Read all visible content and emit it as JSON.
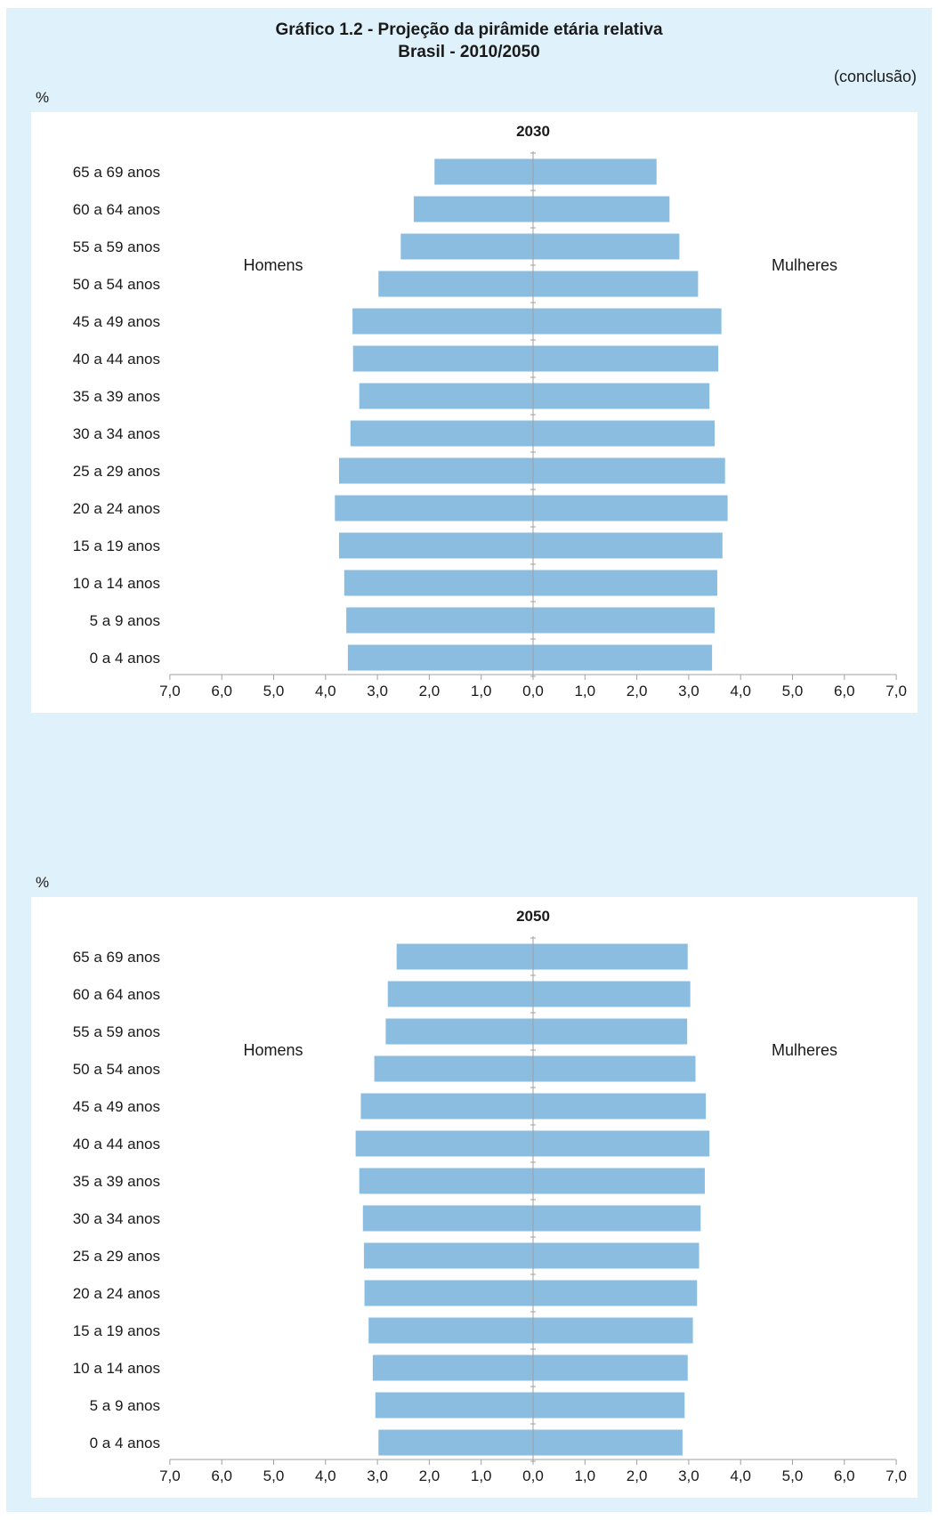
{
  "title_line1": "Gráfico 1.2 - Projeção da pirâmide etária relativa",
  "title_line2": "Brasil - 2010/2050",
  "note": "(conclusão)",
  "colors": {
    "bar": "#8bbde0",
    "background": "#dff1fa",
    "panel": "#ffffff",
    "axis": "#a0a0a0"
  },
  "chart_data": [
    {
      "type": "bar",
      "title": "2030",
      "unit": "%",
      "left_label": "Homens",
      "right_label": "Mulheres",
      "categories": [
        "65 a 69 anos",
        "60 a 64 anos",
        "55 a 59 anos",
        "50 a 54 anos",
        "45 a 49 anos",
        "40 a 44 anos",
        "35 a 39 anos",
        "30 a 34 anos",
        "25 a 29 anos",
        "20 a 24 anos",
        "15 a 19 anos",
        "10 a 14 anos",
        "5 a 9 anos",
        "0 a 4 anos"
      ],
      "series": [
        {
          "name": "Homens",
          "values": [
            1.9,
            2.3,
            2.55,
            2.98,
            3.48,
            3.47,
            3.35,
            3.52,
            3.74,
            3.82,
            3.74,
            3.64,
            3.6,
            3.57
          ]
        },
        {
          "name": "Mulheres",
          "values": [
            2.38,
            2.63,
            2.82,
            3.18,
            3.63,
            3.57,
            3.4,
            3.5,
            3.7,
            3.75,
            3.65,
            3.55,
            3.5,
            3.45
          ]
        }
      ],
      "xticks": [
        "7,0",
        "6,0",
        "5,0",
        "4,0",
        "3,0",
        "2,0",
        "1,0",
        "0,0",
        "1,0",
        "2,0",
        "3,0",
        "4,0",
        "5,0",
        "6,0",
        "7,0"
      ],
      "xlim": [
        -7,
        7
      ],
      "grid": false
    },
    {
      "type": "bar",
      "title": "2050",
      "unit": "%",
      "left_label": "Homens",
      "right_label": "Mulheres",
      "categories": [
        "65 a 69 anos",
        "60 a 64 anos",
        "55 a 59 anos",
        "50 a 54 anos",
        "45 a 49 anos",
        "40 a 44 anos",
        "35 a 39 anos",
        "30 a 34 anos",
        "25 a 29 anos",
        "20 a 24 anos",
        "15 a 19 anos",
        "10 a 14 anos",
        "5 a 9 anos",
        "0 a 4 anos"
      ],
      "series": [
        {
          "name": "Homens",
          "values": [
            2.63,
            2.8,
            2.84,
            3.06,
            3.32,
            3.42,
            3.35,
            3.28,
            3.26,
            3.25,
            3.17,
            3.09,
            3.04,
            2.98
          ]
        },
        {
          "name": "Mulheres",
          "values": [
            2.98,
            3.03,
            2.97,
            3.13,
            3.33,
            3.4,
            3.31,
            3.23,
            3.2,
            3.16,
            3.08,
            2.98,
            2.92,
            2.88
          ]
        }
      ],
      "xticks": [
        "7,0",
        "6,0",
        "5,0",
        "4,0",
        "3,0",
        "2,0",
        "1,0",
        "0,0",
        "1,0",
        "2,0",
        "3,0",
        "4,0",
        "5,0",
        "6,0",
        "7,0"
      ],
      "xlim": [
        -7,
        7
      ],
      "grid": false
    }
  ]
}
